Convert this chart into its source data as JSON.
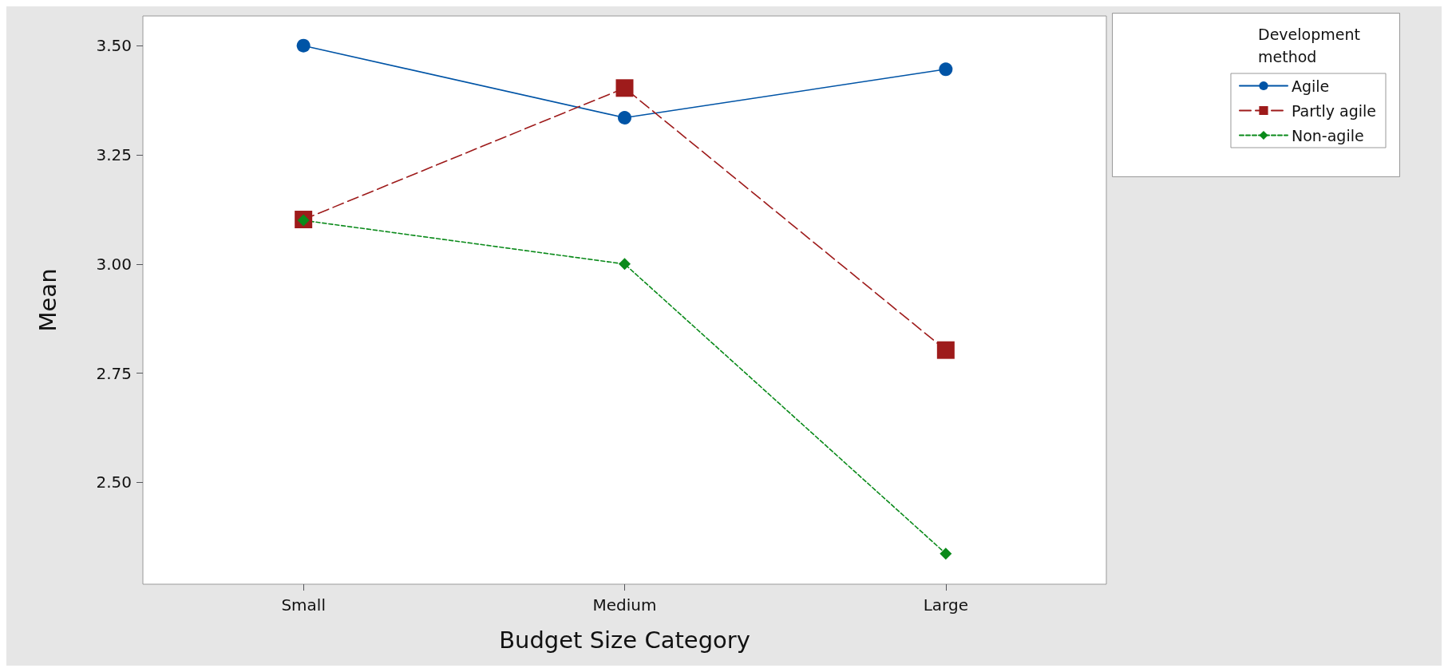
{
  "chart_data": {
    "type": "line",
    "xlabel": "Budget Size Category",
    "ylabel": "Mean",
    "legend_title": "Development method",
    "categories": [
      "Small",
      "Medium",
      "Large"
    ],
    "series": [
      {
        "name": "Agile",
        "color": "#0054a6",
        "marker": "circle",
        "line_style": "solid",
        "values": [
          3.5,
          3.335,
          3.446
        ]
      },
      {
        "name": "Partly agile",
        "color": "#9e1b1b",
        "marker": "square",
        "line_style": "dashed",
        "values": [
          3.102,
          3.403,
          2.803
        ]
      },
      {
        "name": "Non-agile",
        "color": "#0a8a1a",
        "marker": "diamond",
        "line_style": "dotted",
        "values": [
          3.1,
          3.0,
          2.337
        ]
      }
    ],
    "ylim": [
      2.267,
      3.568
    ],
    "yticks": [
      {
        "value": 2.5,
        "label": "2.50"
      },
      {
        "value": 2.75,
        "label": "2.75"
      },
      {
        "value": 3.0,
        "label": "3.00"
      },
      {
        "value": 3.25,
        "label": "3.25"
      },
      {
        "value": 3.5,
        "label": "3.50"
      }
    ],
    "grid": false,
    "legend": "top right"
  }
}
